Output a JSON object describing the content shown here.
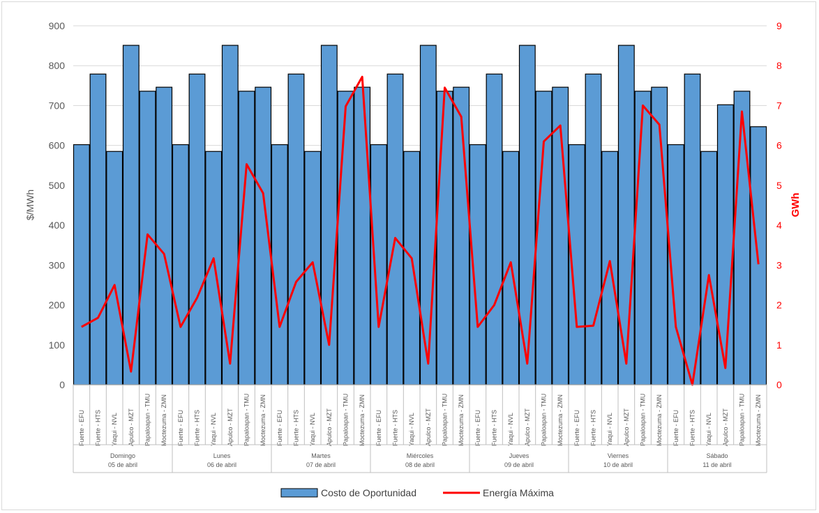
{
  "chart_data": {
    "type": "bar",
    "ylabel": "$/MWh",
    "y2label": "GWh",
    "ylim": [
      0,
      900
    ],
    "y2lim": [
      0,
      9
    ],
    "yticks": [
      "0",
      "100",
      "200",
      "300",
      "400",
      "500",
      "600",
      "700",
      "800",
      "900"
    ],
    "y2ticks": [
      "0",
      "1",
      "2",
      "3",
      "4",
      "5",
      "6",
      "7",
      "8",
      "9"
    ],
    "grid": true,
    "legend_position": "bottom",
    "colors": {
      "bars": "#5b9bd5",
      "bar_border": "#000000",
      "line": "#ff0000",
      "grid": "#d9d9d9"
    },
    "categories": [
      "Fuerte - EFU",
      "Fuerte - HTS",
      "Yaqui - NVL",
      "Apulco - MZT",
      "Papaloapan - TMU",
      "Moctezuma - ZMN"
    ],
    "groups": [
      {
        "day": "Domingo",
        "date": "05 de abril"
      },
      {
        "day": "Lunes",
        "date": "06 de abril"
      },
      {
        "day": "Martes",
        "date": "07 de abril"
      },
      {
        "day": "Miércoles",
        "date": "08 de abril"
      },
      {
        "day": "Jueves",
        "date": "09 de abril"
      },
      {
        "day": "Viernes",
        "date": "10 de abril"
      },
      {
        "day": "Sábado",
        "date": "11 de abril"
      }
    ],
    "series": [
      {
        "name": "Costo de Oportunidad",
        "type": "bar",
        "axis": "left",
        "values": [
          [
            602,
            779,
            585,
            851,
            736,
            746
          ],
          [
            602,
            779,
            585,
            851,
            736,
            746
          ],
          [
            602,
            779,
            585,
            851,
            736,
            746
          ],
          [
            602,
            779,
            585,
            851,
            736,
            746
          ],
          [
            602,
            779,
            585,
            851,
            736,
            746
          ],
          [
            602,
            779,
            585,
            851,
            736,
            746
          ],
          [
            602,
            779,
            585,
            702,
            736,
            647
          ]
        ]
      },
      {
        "name": "Energía Máxima",
        "type": "line",
        "axis": "right",
        "values": [
          [
            1.45,
            1.68,
            2.5,
            0.33,
            3.77,
            3.28
          ],
          [
            1.45,
            2.18,
            3.17,
            0.53,
            5.53,
            4.8
          ],
          [
            1.45,
            2.58,
            3.07,
            1.0,
            6.98,
            7.72
          ],
          [
            1.45,
            3.68,
            3.17,
            0.53,
            7.45,
            6.72
          ],
          [
            1.45,
            2.0,
            3.07,
            0.53,
            6.1,
            6.5
          ],
          [
            1.45,
            1.48,
            3.1,
            0.53,
            7.0,
            6.52
          ],
          [
            1.45,
            0.0,
            2.75,
            0.42,
            6.85,
            3.02
          ]
        ]
      }
    ]
  }
}
